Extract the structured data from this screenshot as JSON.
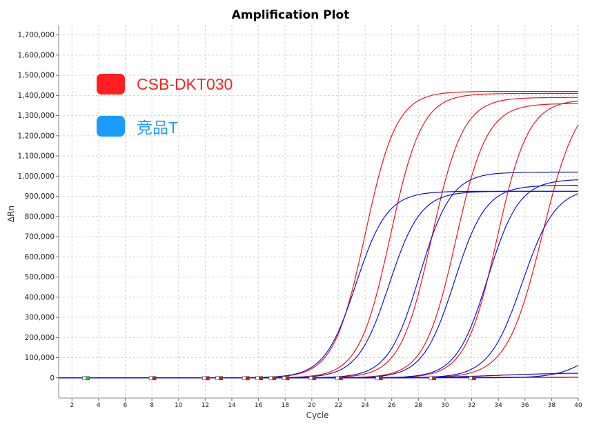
{
  "chart_data": {
    "type": "line",
    "title": "Amplification Plot",
    "xlabel": "Cycle",
    "ylabel": "ΔRn",
    "xlim": [
      1,
      40
    ],
    "ylim": [
      -100000,
      1750000
    ],
    "x_ticks": [
      "2",
      "4",
      "6",
      "8",
      "10",
      "12",
      "14",
      "16",
      "18",
      "20",
      "22",
      "24",
      "26",
      "28",
      "30",
      "32",
      "34",
      "36",
      "38",
      "40"
    ],
    "y_ticks": [
      "0",
      "100,000",
      "200,000",
      "300,000",
      "400,000",
      "500,000",
      "600,000",
      "700,000",
      "800,000",
      "900,000",
      "1,000,000",
      "1,100,000",
      "1,200,000",
      "1,300,000",
      "1,400,000",
      "1,500,000",
      "1,600,000",
      "1,700,000"
    ],
    "grid": true,
    "legend": [
      {
        "label": "CSB-DKT030",
        "color": "#ff1f1f"
      },
      {
        "label": "竞品T",
        "color": "#1a9bff"
      }
    ],
    "series_colors": {
      "red": "#e8141a",
      "blue": "#1010cc"
    },
    "series": [
      {
        "group": "red",
        "plateau": 1420000,
        "midpoint": 24.0,
        "slope": 0.85
      },
      {
        "group": "red",
        "plateau": 1410000,
        "midpoint": 25.9,
        "slope": 0.85
      },
      {
        "group": "red",
        "plateau": 1390000,
        "midpoint": 29.0,
        "slope": 0.85
      },
      {
        "group": "red",
        "plateau": 1360000,
        "midpoint": 30.8,
        "slope": 0.85
      },
      {
        "group": "red",
        "plateau": 1380000,
        "midpoint": 33.9,
        "slope": 0.85
      },
      {
        "group": "red",
        "plateau": 1420000,
        "midpoint": 37.3,
        "slope": 0.75
      },
      {
        "group": "red",
        "plateau": 5000,
        "midpoint": 30,
        "slope": 0.1
      },
      {
        "group": "red",
        "plateau": 4000,
        "midpoint": 35,
        "slope": 0.1
      },
      {
        "group": "blue",
        "plateau": 925000,
        "midpoint": 23.3,
        "slope": 0.85
      },
      {
        "group": "blue",
        "plateau": 925000,
        "midpoint": 25.8,
        "slope": 0.85
      },
      {
        "group": "blue",
        "plateau": 1020000,
        "midpoint": 28.1,
        "slope": 0.85
      },
      {
        "group": "blue",
        "plateau": 955000,
        "midpoint": 30.7,
        "slope": 0.85
      },
      {
        "group": "blue",
        "plateau": 985000,
        "midpoint": 33.2,
        "slope": 0.85
      },
      {
        "group": "blue",
        "plateau": 945000,
        "midpoint": 35.8,
        "slope": 0.8
      },
      {
        "group": "blue",
        "plateau": 200000,
        "midpoint": 41.0,
        "slope": 0.8
      },
      {
        "group": "blue",
        "plateau": 25000,
        "midpoint": 34.0,
        "slope": 0.4
      }
    ],
    "thresholds_cycles": [
      3,
      8,
      12,
      13,
      15,
      16,
      17,
      18,
      20,
      22,
      25,
      29,
      32
    ]
  }
}
